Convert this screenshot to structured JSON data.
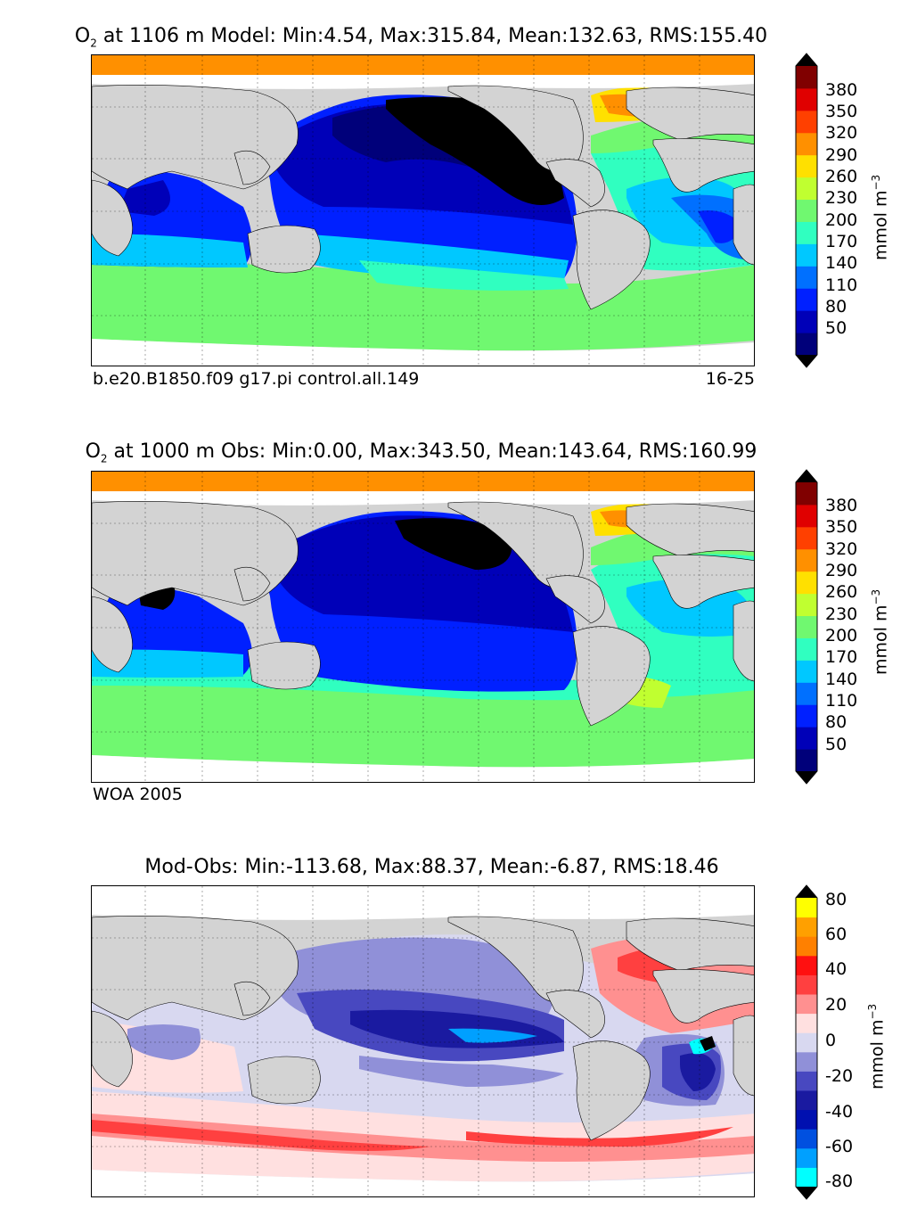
{
  "panels": [
    {
      "id": "model",
      "title_prefix": "O",
      "title_sub": "2",
      "title_rest": " at 1106 m Model: Min:4.54, Max:315.84, Mean:132.63, RMS:155.40",
      "caption_left": "b.e20.B1850.f09 g17.pi control.all.149",
      "caption_right": "16-25",
      "colorbar": {
        "ticks": [
          "380",
          "350",
          "320",
          "290",
          "260",
          "230",
          "200",
          "170",
          "140",
          "110",
          "80",
          "50"
        ],
        "unit_main": "mmol m",
        "unit_sup": "−3",
        "colors": [
          "#00007a",
          "#0000b8",
          "#0020ff",
          "#0070ff",
          "#00c8ff",
          "#30ffc0",
          "#70f870",
          "#c0ff30",
          "#ffe000",
          "#ff9000",
          "#ff4000",
          "#e00000",
          "#800000"
        ]
      }
    },
    {
      "id": "obs",
      "title_prefix": "O",
      "title_sub": "2",
      "title_rest": " at 1000 m Obs: Min:0.00, Max:343.50, Mean:143.64, RMS:160.99",
      "caption_left": "WOA 2005",
      "caption_right": "",
      "colorbar": {
        "ticks": [
          "380",
          "350",
          "320",
          "290",
          "260",
          "230",
          "200",
          "170",
          "140",
          "110",
          "80",
          "50"
        ],
        "unit_main": "mmol m",
        "unit_sup": "−3",
        "colors": [
          "#00007a",
          "#0000b8",
          "#0020ff",
          "#0070ff",
          "#00c8ff",
          "#30ffc0",
          "#70f870",
          "#c0ff30",
          "#ffe000",
          "#ff9000",
          "#ff4000",
          "#e00000",
          "#800000"
        ]
      }
    },
    {
      "id": "diff",
      "title_prefix": "",
      "title_sub": "",
      "title_rest": "Mod-Obs: Min:-113.68, Max:88.37, Mean:-6.87, RMS:18.46",
      "caption_left": "",
      "caption_right": "",
      "colorbar": {
        "ticks": [
          "80",
          "60",
          "40",
          "20",
          "0",
          "-20",
          "-40",
          "-60",
          "-80"
        ],
        "unit_main": "mmol m",
        "unit_sup": "−3",
        "colors": [
          "#00ffff",
          "#00a0ff",
          "#0050e0",
          "#0010b0",
          "#1a1aa0",
          "#4848c0",
          "#9090d8",
          "#d8d8f0",
          "#ffe0e0",
          "#ff9090",
          "#ff4040",
          "#ff1010",
          "#ff8000",
          "#ffa000",
          "#ffff00"
        ]
      }
    }
  ],
  "colors": {
    "land": "#d3d3d3",
    "ice_white": "#ffffff",
    "arctic_orange": "#ff9000",
    "extend_black": "#000000"
  }
}
